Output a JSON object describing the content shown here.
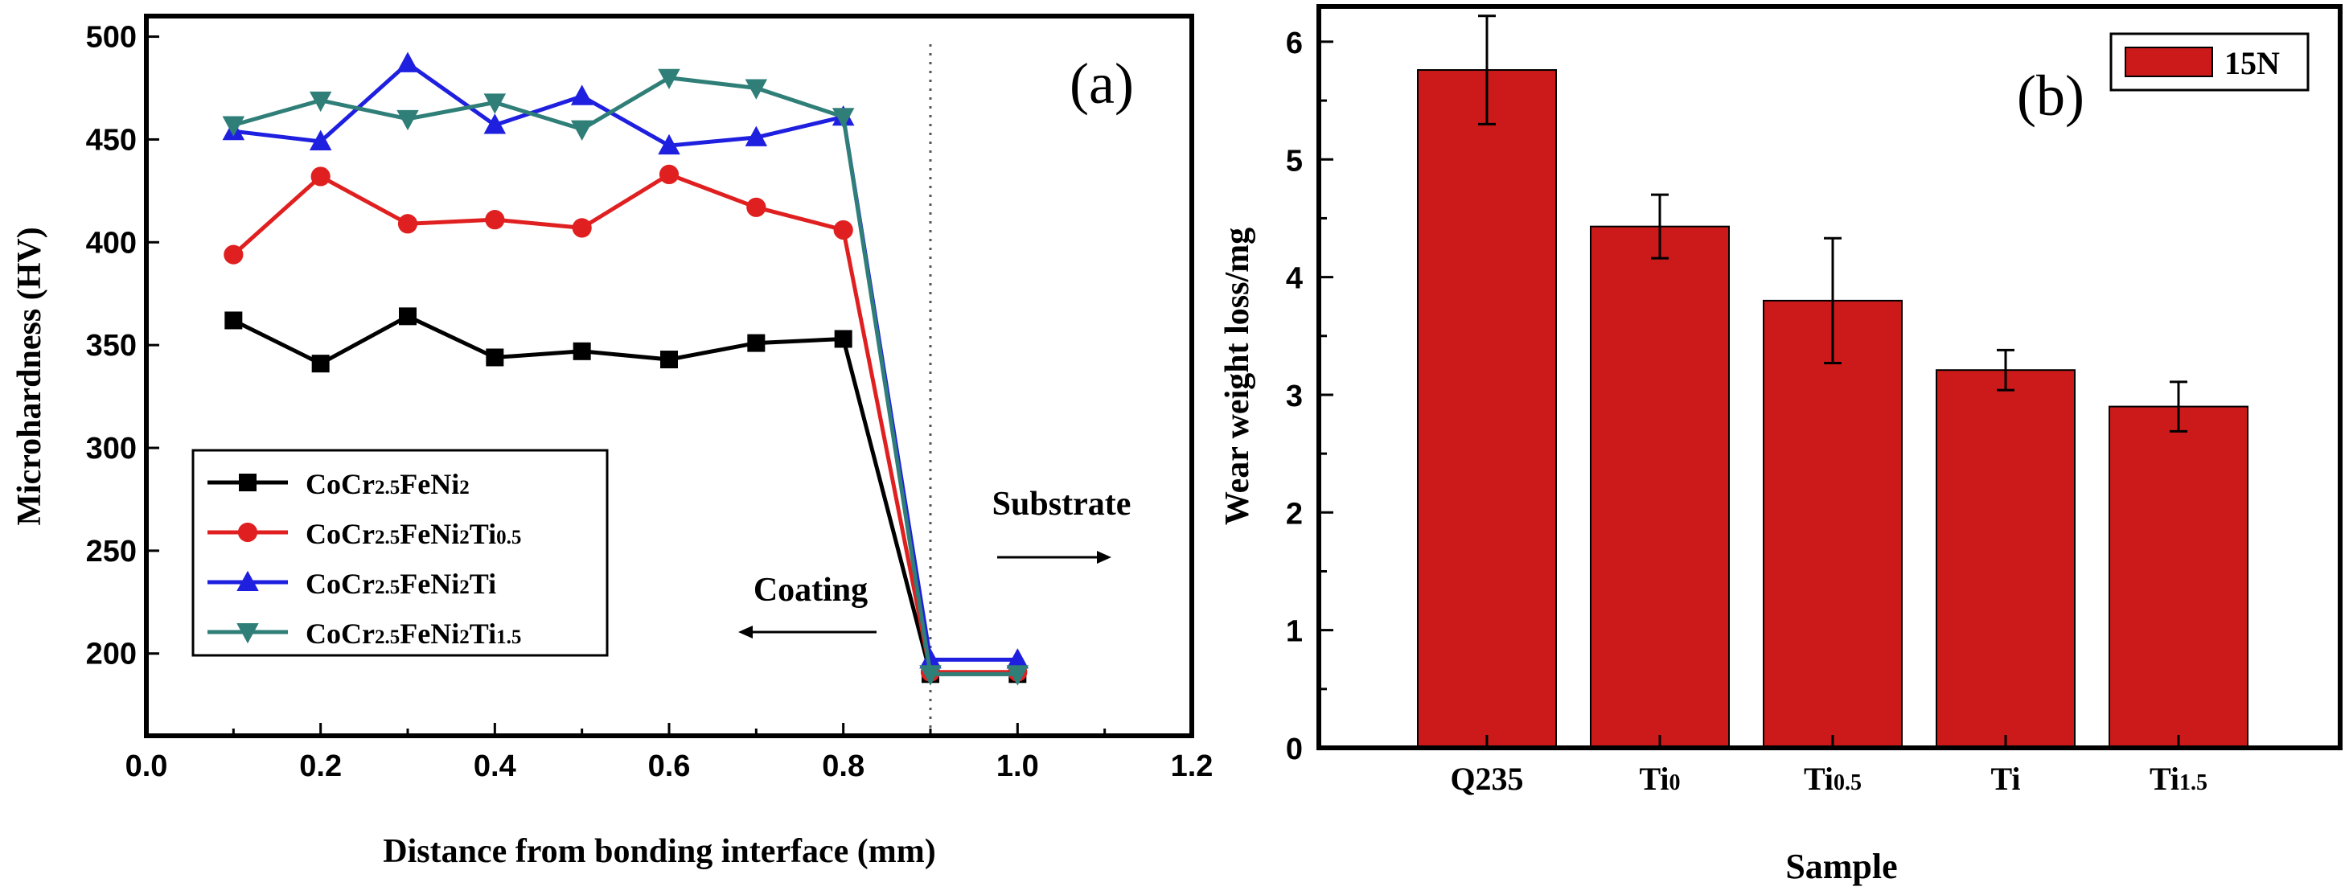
{
  "chart_data": [
    {
      "type": "line",
      "panel_label": "(a)",
      "xlabel": "Distance from bonding interface (mm)",
      "ylabel": "Microhardness (HV)",
      "xlim": [
        0.0,
        1.2
      ],
      "ylim": [
        160,
        510
      ],
      "xticks": [
        "0.0",
        "0.2",
        "0.4",
        "0.6",
        "0.8",
        "1.0",
        "1.2"
      ],
      "yticks": [
        "200",
        "250",
        "300",
        "350",
        "400",
        "450",
        "500"
      ],
      "legend_placement": "lower-left",
      "reference_line_x": 0.9,
      "annotations": {
        "substrate": "Substrate",
        "coating": "Coating"
      },
      "series": [
        {
          "name": {
            "base": "CoCr",
            "s1": "2.5",
            "mid": "FeNi",
            "s2": "2",
            "ti": "",
            "s3": ""
          },
          "color": "#000000",
          "marker": "square",
          "x": [
            0.1,
            0.2,
            0.3,
            0.4,
            0.5,
            0.6,
            0.7,
            0.8,
            0.9,
            1.0
          ],
          "y": [
            362,
            341,
            364,
            344,
            347,
            343,
            351,
            353,
            190,
            190
          ]
        },
        {
          "name": {
            "base": "CoCr",
            "s1": "2.5",
            "mid": "FeNi",
            "s2": "2",
            "ti": "Ti",
            "s3": "0.5"
          },
          "color": "#e02020",
          "marker": "circle",
          "x": [
            0.1,
            0.2,
            0.3,
            0.4,
            0.5,
            0.6,
            0.7,
            0.8,
            0.9,
            1.0
          ],
          "y": [
            394,
            432,
            409,
            411,
            407,
            433,
            417,
            406,
            191,
            191
          ]
        },
        {
          "name": {
            "base": "CoCr",
            "s1": "2.5",
            "mid": "FeNi",
            "s2": "2",
            "ti": "Ti",
            "s3": ""
          },
          "color": "#1f1fe0",
          "marker": "triangle-up",
          "x": [
            0.1,
            0.2,
            0.3,
            0.4,
            0.5,
            0.6,
            0.7,
            0.8,
            0.9,
            1.0
          ],
          "y": [
            454,
            449,
            487,
            457,
            471,
            447,
            451,
            461,
            197,
            197
          ]
        },
        {
          "name": {
            "base": "CoCr",
            "s1": "2.5",
            "mid": "FeNi",
            "s2": "2",
            "ti": "Ti",
            "s3": "1.5"
          },
          "color": "#2f7f78",
          "marker": "triangle-down",
          "x": [
            0.1,
            0.2,
            0.3,
            0.4,
            0.5,
            0.6,
            0.7,
            0.8,
            0.9,
            1.0
          ],
          "y": [
            457,
            469,
            460,
            468,
            455,
            480,
            475,
            461,
            190,
            190
          ]
        }
      ]
    },
    {
      "type": "bar",
      "panel_label": "(b)",
      "xlabel": "Sample",
      "ylabel": "Wear weight loss/mg",
      "ylim": [
        0,
        6.3
      ],
      "yticks": [
        "0",
        "1",
        "2",
        "3",
        "4",
        "5",
        "6"
      ],
      "legend_placement": "top-right",
      "categories": [
        {
          "main": "Q235",
          "sub": ""
        },
        {
          "main": "Ti",
          "sub": "0"
        },
        {
          "main": "Ti",
          "sub": "0.5"
        },
        {
          "main": "Ti",
          "sub": ""
        },
        {
          "main": "Ti",
          "sub": "1.5"
        }
      ],
      "series": [
        {
          "name": "15N",
          "color": "#cc1a1a",
          "values": [
            5.76,
            4.43,
            3.8,
            3.21,
            2.9
          ],
          "errors": [
            0.46,
            0.27,
            0.53,
            0.17,
            0.21
          ]
        }
      ]
    }
  ]
}
